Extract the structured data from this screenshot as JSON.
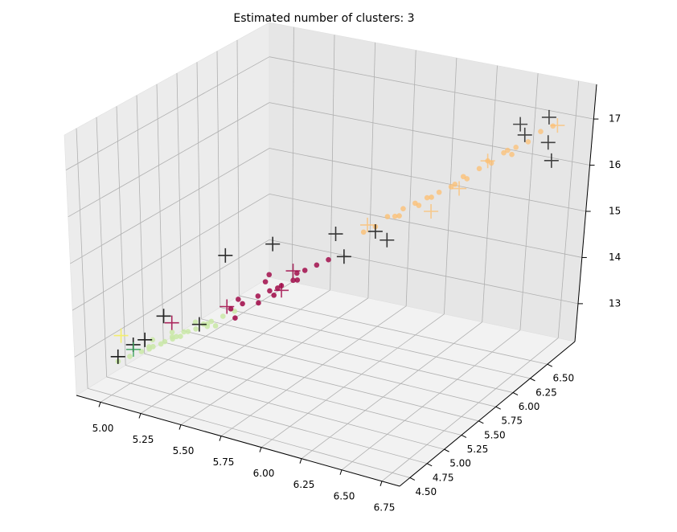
{
  "chart_data": {
    "type": "scatter3d",
    "title": "Estimated number of clusters: 3",
    "grid": true,
    "xlim": [
      4.85,
      6.86
    ],
    "xticks": [
      {
        "value": 5,
        "label": "5.00"
      },
      5.25,
      {
        "value": 5.5,
        "label": "5.50"
      },
      5.75,
      {
        "value": 6,
        "label": "6.00"
      },
      6.25,
      {
        "value": 6.5,
        "label": "6.50"
      },
      6.75
    ],
    "ylim": [
      4.35,
      6.9
    ],
    "yticks": [
      {
        "value": 4.5,
        "label": "4.50"
      },
      4.75,
      {
        "value": 5,
        "label": "5.00"
      },
      5.25,
      {
        "value": 5.5,
        "label": "5.50"
      },
      5.75,
      {
        "value": 6,
        "label": "6.00"
      },
      6.25,
      {
        "value": 6.5,
        "label": "6.50"
      }
    ],
    "zlim": [
      12.18,
      17.75
    ],
    "zticks": [
      13,
      14,
      15,
      16,
      17
    ],
    "series": [
      {
        "color": "#c9e8a6",
        "marker": "o",
        "x": [
          5.1,
          5.2,
          5.3,
          5.15,
          5.25,
          5.35,
          5.05,
          5.4,
          5.2,
          5.3,
          5.1,
          5.45,
          5.25,
          5.15,
          5.35,
          5.5,
          5.0,
          5.3,
          5.2,
          5.4,
          5.1,
          5.25,
          5.35,
          5.45,
          5.2
        ],
        "y": [
          4.7,
          4.8,
          4.9,
          4.75,
          4.85,
          5.0,
          4.65,
          5.0,
          4.9,
          4.8,
          4.8,
          5.05,
          4.95,
          4.7,
          4.9,
          5.1,
          4.6,
          5.0,
          4.75,
          4.95,
          4.85,
          4.8,
          5.05,
          4.95,
          4.9
        ],
        "z": [
          13.0,
          13.2,
          13.4,
          13.1,
          13.3,
          13.5,
          12.9,
          13.6,
          13.2,
          13.4,
          13.0,
          13.7,
          13.3,
          13.1,
          13.5,
          13.8,
          12.8,
          13.5,
          13.2,
          13.6,
          13.1,
          13.3,
          13.4,
          13.6,
          13.3
        ]
      },
      {
        "color": "#9e0142",
        "marker": "o",
        "x": [
          5.5,
          5.6,
          5.7,
          5.55,
          5.65,
          5.75,
          5.8,
          5.5,
          5.6,
          5.7,
          5.85,
          5.65,
          5.55,
          5.75,
          5.9,
          5.6,
          5.7,
          5.8
        ],
        "y": [
          5.05,
          5.2,
          5.3,
          5.1,
          5.25,
          5.35,
          5.4,
          5.15,
          5.3,
          5.2,
          5.45,
          5.1,
          5.0,
          5.4,
          5.5,
          5.35,
          5.25,
          5.3
        ],
        "z": [
          13.9,
          14.1,
          14.3,
          14.0,
          14.2,
          14.4,
          14.6,
          14.0,
          14.3,
          14.2,
          14.7,
          14.1,
          13.8,
          14.5,
          14.8,
          14.4,
          14.3,
          14.5
        ]
      },
      {
        "color": "#fdbe6f",
        "marker": "o",
        "x": [
          6.0,
          6.05,
          6.1,
          6.15,
          6.2,
          6.25,
          6.3,
          6.35,
          6.4,
          6.45,
          6.5,
          6.55,
          6.6,
          6.65,
          6.7,
          6.1,
          6.2,
          6.3,
          6.4,
          6.5,
          6.6,
          6.75,
          6.15,
          6.35,
          6.55
        ],
        "y": [
          5.75,
          5.8,
          5.85,
          5.95,
          6.0,
          6.05,
          6.1,
          6.15,
          6.2,
          6.3,
          6.35,
          6.4,
          6.45,
          6.5,
          6.55,
          5.95,
          6.05,
          6.0,
          6.25,
          6.3,
          6.4,
          6.6,
          5.9,
          6.2,
          6.45
        ],
        "z": [
          15.2,
          15.3,
          15.5,
          15.6,
          15.7,
          15.8,
          15.9,
          16.0,
          16.2,
          16.3,
          16.4,
          16.6,
          16.7,
          16.8,
          17.0,
          15.4,
          15.6,
          15.9,
          16.1,
          16.5,
          16.6,
          17.1,
          15.5,
          16.0,
          16.6
        ]
      },
      {
        "color": "#000000",
        "marker": "+",
        "x": [
          5.0,
          5.05,
          5.1,
          5.15,
          5.4,
          5.6,
          5.85,
          5.95,
          6.05,
          6.1,
          6.55,
          6.7,
          6.75,
          6.8,
          6.65,
          5.3
        ],
        "y": [
          4.6,
          4.7,
          4.75,
          4.9,
          5.2,
          5.4,
          5.7,
          5.6,
          5.8,
          5.85,
          6.6,
          6.65,
          6.55,
          6.5,
          6.45,
          5.05
        ],
        "z": [
          12.9,
          13.1,
          13.2,
          13.6,
          14.8,
          15.0,
          15.1,
          14.8,
          15.2,
          15.0,
          17.0,
          17.2,
          16.8,
          16.5,
          17.0,
          13.4
        ]
      },
      {
        "color": "#9e0142",
        "marker": "+",
        "x": [
          5.2,
          5.5,
          5.7,
          5.75
        ],
        "y": [
          4.9,
          5.0,
          5.3,
          5.35
        ],
        "z": [
          13.5,
          14.0,
          14.2,
          14.6
        ]
      },
      {
        "color": "#fdbe6f",
        "marker": "+",
        "x": [
          6.0,
          6.3,
          6.4,
          6.5,
          6.8
        ],
        "y": [
          5.8,
          6.0,
          6.15,
          6.3,
          6.55
        ],
        "z": [
          15.3,
          15.6,
          16.0,
          16.5,
          17.2
        ]
      },
      {
        "color": "#f5ef5a",
        "marker": "+",
        "x": [
          5.0
        ],
        "y": [
          4.65
        ],
        "z": [
          13.3
        ]
      },
      {
        "color": "#3aa35c",
        "marker": "+",
        "x": [
          5.05
        ],
        "y": [
          4.7
        ],
        "z": [
          13.0
        ]
      }
    ]
  }
}
